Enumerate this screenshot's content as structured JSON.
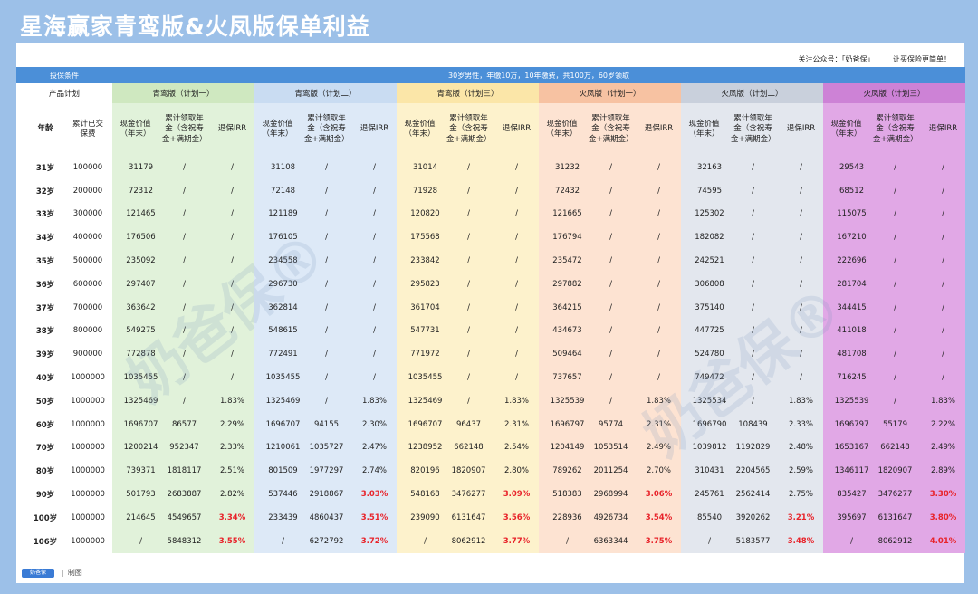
{
  "title": "星海赢家青鸾版&火凤版保单利益",
  "follow": {
    "account": "关注公众号：「奶爸保」",
    "slogan": "让买保险更简单！"
  },
  "conditions": {
    "label": "投保条件",
    "value": "30岁男性，年缴10万，10年缴费，共100万，60岁领取"
  },
  "header": {
    "product_plan": "产品计划",
    "age": "年龄",
    "paid": "累计已交保费",
    "cash": "现金价值（年末）",
    "annuity": "累计领取年金（含祝寿金+满期金）",
    "irr": "退保IRR"
  },
  "plans": [
    {
      "name": "青鸾版（计划一）"
    },
    {
      "name": "青鸾版（计划二）"
    },
    {
      "name": "青鸾版（计划三）"
    },
    {
      "name": "火凤版（计划一）"
    },
    {
      "name": "火凤版（计划二）"
    },
    {
      "name": "火凤版（计划三）"
    }
  ],
  "rows": [
    {
      "age": "31岁",
      "paid": "100000",
      "v": [
        [
          "31179",
          "/",
          "/"
        ],
        [
          "31108",
          "/",
          "/"
        ],
        [
          "31014",
          "/",
          "/"
        ],
        [
          "31232",
          "/",
          "/"
        ],
        [
          "32163",
          "/",
          "/"
        ],
        [
          "29543",
          "/",
          "/"
        ]
      ]
    },
    {
      "age": "32岁",
      "paid": "200000",
      "v": [
        [
          "72312",
          "/",
          "/"
        ],
        [
          "72148",
          "/",
          "/"
        ],
        [
          "71928",
          "/",
          "/"
        ],
        [
          "72432",
          "/",
          "/"
        ],
        [
          "74595",
          "/",
          "/"
        ],
        [
          "68512",
          "/",
          "/"
        ]
      ]
    },
    {
      "age": "33岁",
      "paid": "300000",
      "v": [
        [
          "121465",
          "/",
          "/"
        ],
        [
          "121189",
          "/",
          "/"
        ],
        [
          "120820",
          "/",
          "/"
        ],
        [
          "121665",
          "/",
          "/"
        ],
        [
          "125302",
          "/",
          "/"
        ],
        [
          "115075",
          "/",
          "/"
        ]
      ]
    },
    {
      "age": "34岁",
      "paid": "400000",
      "v": [
        [
          "176506",
          "/",
          "/"
        ],
        [
          "176105",
          "/",
          "/"
        ],
        [
          "175568",
          "/",
          "/"
        ],
        [
          "176794",
          "/",
          "/"
        ],
        [
          "182082",
          "/",
          "/"
        ],
        [
          "167210",
          "/",
          "/"
        ]
      ]
    },
    {
      "age": "35岁",
      "paid": "500000",
      "v": [
        [
          "235092",
          "/",
          "/"
        ],
        [
          "234558",
          "/",
          "/"
        ],
        [
          "233842",
          "/",
          "/"
        ],
        [
          "235472",
          "/",
          "/"
        ],
        [
          "242521",
          "/",
          "/"
        ],
        [
          "222696",
          "/",
          "/"
        ]
      ]
    },
    {
      "age": "36岁",
      "paid": "600000",
      "v": [
        [
          "297407",
          "/",
          "/"
        ],
        [
          "296730",
          "/",
          "/"
        ],
        [
          "295823",
          "/",
          "/"
        ],
        [
          "297882",
          "/",
          "/"
        ],
        [
          "306808",
          "/",
          "/"
        ],
        [
          "281704",
          "/",
          "/"
        ]
      ]
    },
    {
      "age": "37岁",
      "paid": "700000",
      "v": [
        [
          "363642",
          "/",
          "/"
        ],
        [
          "362814",
          "/",
          "/"
        ],
        [
          "361704",
          "/",
          "/"
        ],
        [
          "364215",
          "/",
          "/"
        ],
        [
          "375140",
          "/",
          "/"
        ],
        [
          "344415",
          "/",
          "/"
        ]
      ]
    },
    {
      "age": "38岁",
      "paid": "800000",
      "v": [
        [
          "549275",
          "/",
          "/"
        ],
        [
          "548615",
          "/",
          "/"
        ],
        [
          "547731",
          "/",
          "/"
        ],
        [
          "434673",
          "/",
          "/"
        ],
        [
          "447725",
          "/",
          "/"
        ],
        [
          "411018",
          "/",
          "/"
        ]
      ]
    },
    {
      "age": "39岁",
      "paid": "900000",
      "v": [
        [
          "772878",
          "/",
          "/"
        ],
        [
          "772491",
          "/",
          "/"
        ],
        [
          "771972",
          "/",
          "/"
        ],
        [
          "509464",
          "/",
          "/"
        ],
        [
          "524780",
          "/",
          "/"
        ],
        [
          "481708",
          "/",
          "/"
        ]
      ]
    },
    {
      "age": "40岁",
      "paid": "1000000",
      "v": [
        [
          "1035455",
          "/",
          "/"
        ],
        [
          "1035455",
          "/",
          "/"
        ],
        [
          "1035455",
          "/",
          "/"
        ],
        [
          "737657",
          "/",
          "/"
        ],
        [
          "749472",
          "/",
          "/"
        ],
        [
          "716245",
          "/",
          "/"
        ]
      ]
    },
    {
      "age": "50岁",
      "paid": "1000000",
      "v": [
        [
          "1325469",
          "/",
          "1.83%"
        ],
        [
          "1325469",
          "/",
          "1.83%"
        ],
        [
          "1325469",
          "/",
          "1.83%"
        ],
        [
          "1325539",
          "/",
          "1.83%"
        ],
        [
          "1325534",
          "/",
          "1.83%"
        ],
        [
          "1325539",
          "/",
          "1.83%"
        ]
      ]
    },
    {
      "age": "60岁",
      "paid": "1000000",
      "v": [
        [
          "1696707",
          "86577",
          "2.29%"
        ],
        [
          "1696707",
          "94155",
          "2.30%"
        ],
        [
          "1696707",
          "96437",
          "2.31%"
        ],
        [
          "1696797",
          "95774",
          "2.31%"
        ],
        [
          "1696790",
          "108439",
          "2.33%"
        ],
        [
          "1696797",
          "55179",
          "2.22%"
        ]
      ]
    },
    {
      "age": "70岁",
      "paid": "1000000",
      "v": [
        [
          "1200214",
          "952347",
          "2.33%"
        ],
        [
          "1210061",
          "1035727",
          "2.47%"
        ],
        [
          "1238952",
          "662148",
          "2.54%"
        ],
        [
          "1204149",
          "1053514",
          "2.49%"
        ],
        [
          "1039812",
          "1192829",
          "2.48%"
        ],
        [
          "1653167",
          "662148",
          "2.49%"
        ]
      ]
    },
    {
      "age": "80岁",
      "paid": "1000000",
      "v": [
        [
          "739371",
          "1818117",
          "2.51%"
        ],
        [
          "801509",
          "1977297",
          "2.74%"
        ],
        [
          "820196",
          "1820907",
          "2.80%"
        ],
        [
          "789262",
          "2011254",
          "2.70%"
        ],
        [
          "310431",
          "2204565",
          "2.59%"
        ],
        [
          "1346117",
          "1820907",
          "2.89%"
        ]
      ]
    },
    {
      "age": "90岁",
      "paid": "1000000",
      "v": [
        [
          "501793",
          "2683887",
          "2.82%"
        ],
        [
          "537446",
          "2918867",
          "3.03%"
        ],
        [
          "548168",
          "3476277",
          "3.09%"
        ],
        [
          "518383",
          "2968994",
          "3.06%"
        ],
        [
          "245761",
          "2562414",
          "2.75%"
        ],
        [
          "835427",
          "3476277",
          "3.30%"
        ]
      ]
    },
    {
      "age": "100岁",
      "paid": "1000000",
      "v": [
        [
          "214645",
          "4549657",
          "3.34%"
        ],
        [
          "233439",
          "4860437",
          "3.51%"
        ],
        [
          "239090",
          "6131647",
          "3.56%"
        ],
        [
          "228936",
          "4926734",
          "3.54%"
        ],
        [
          "85540",
          "3920262",
          "3.21%"
        ],
        [
          "395697",
          "6131647",
          "3.80%"
        ]
      ]
    },
    {
      "age": "106岁",
      "paid": "1000000",
      "v": [
        [
          "/",
          "5848312",
          "3.55%"
        ],
        [
          "/",
          "6272792",
          "3.72%"
        ],
        [
          "/",
          "8062912",
          "3.77%"
        ],
        [
          "/",
          "6363344",
          "3.75%"
        ],
        [
          "/",
          "5183577",
          "3.48%"
        ],
        [
          "/",
          "8062912",
          "4.01%"
        ]
      ]
    }
  ],
  "highlight_color": "#e8232a",
  "footer": {
    "brand": "奶爸保",
    "suffix": "制图"
  },
  "watermark": "奶爸保®"
}
